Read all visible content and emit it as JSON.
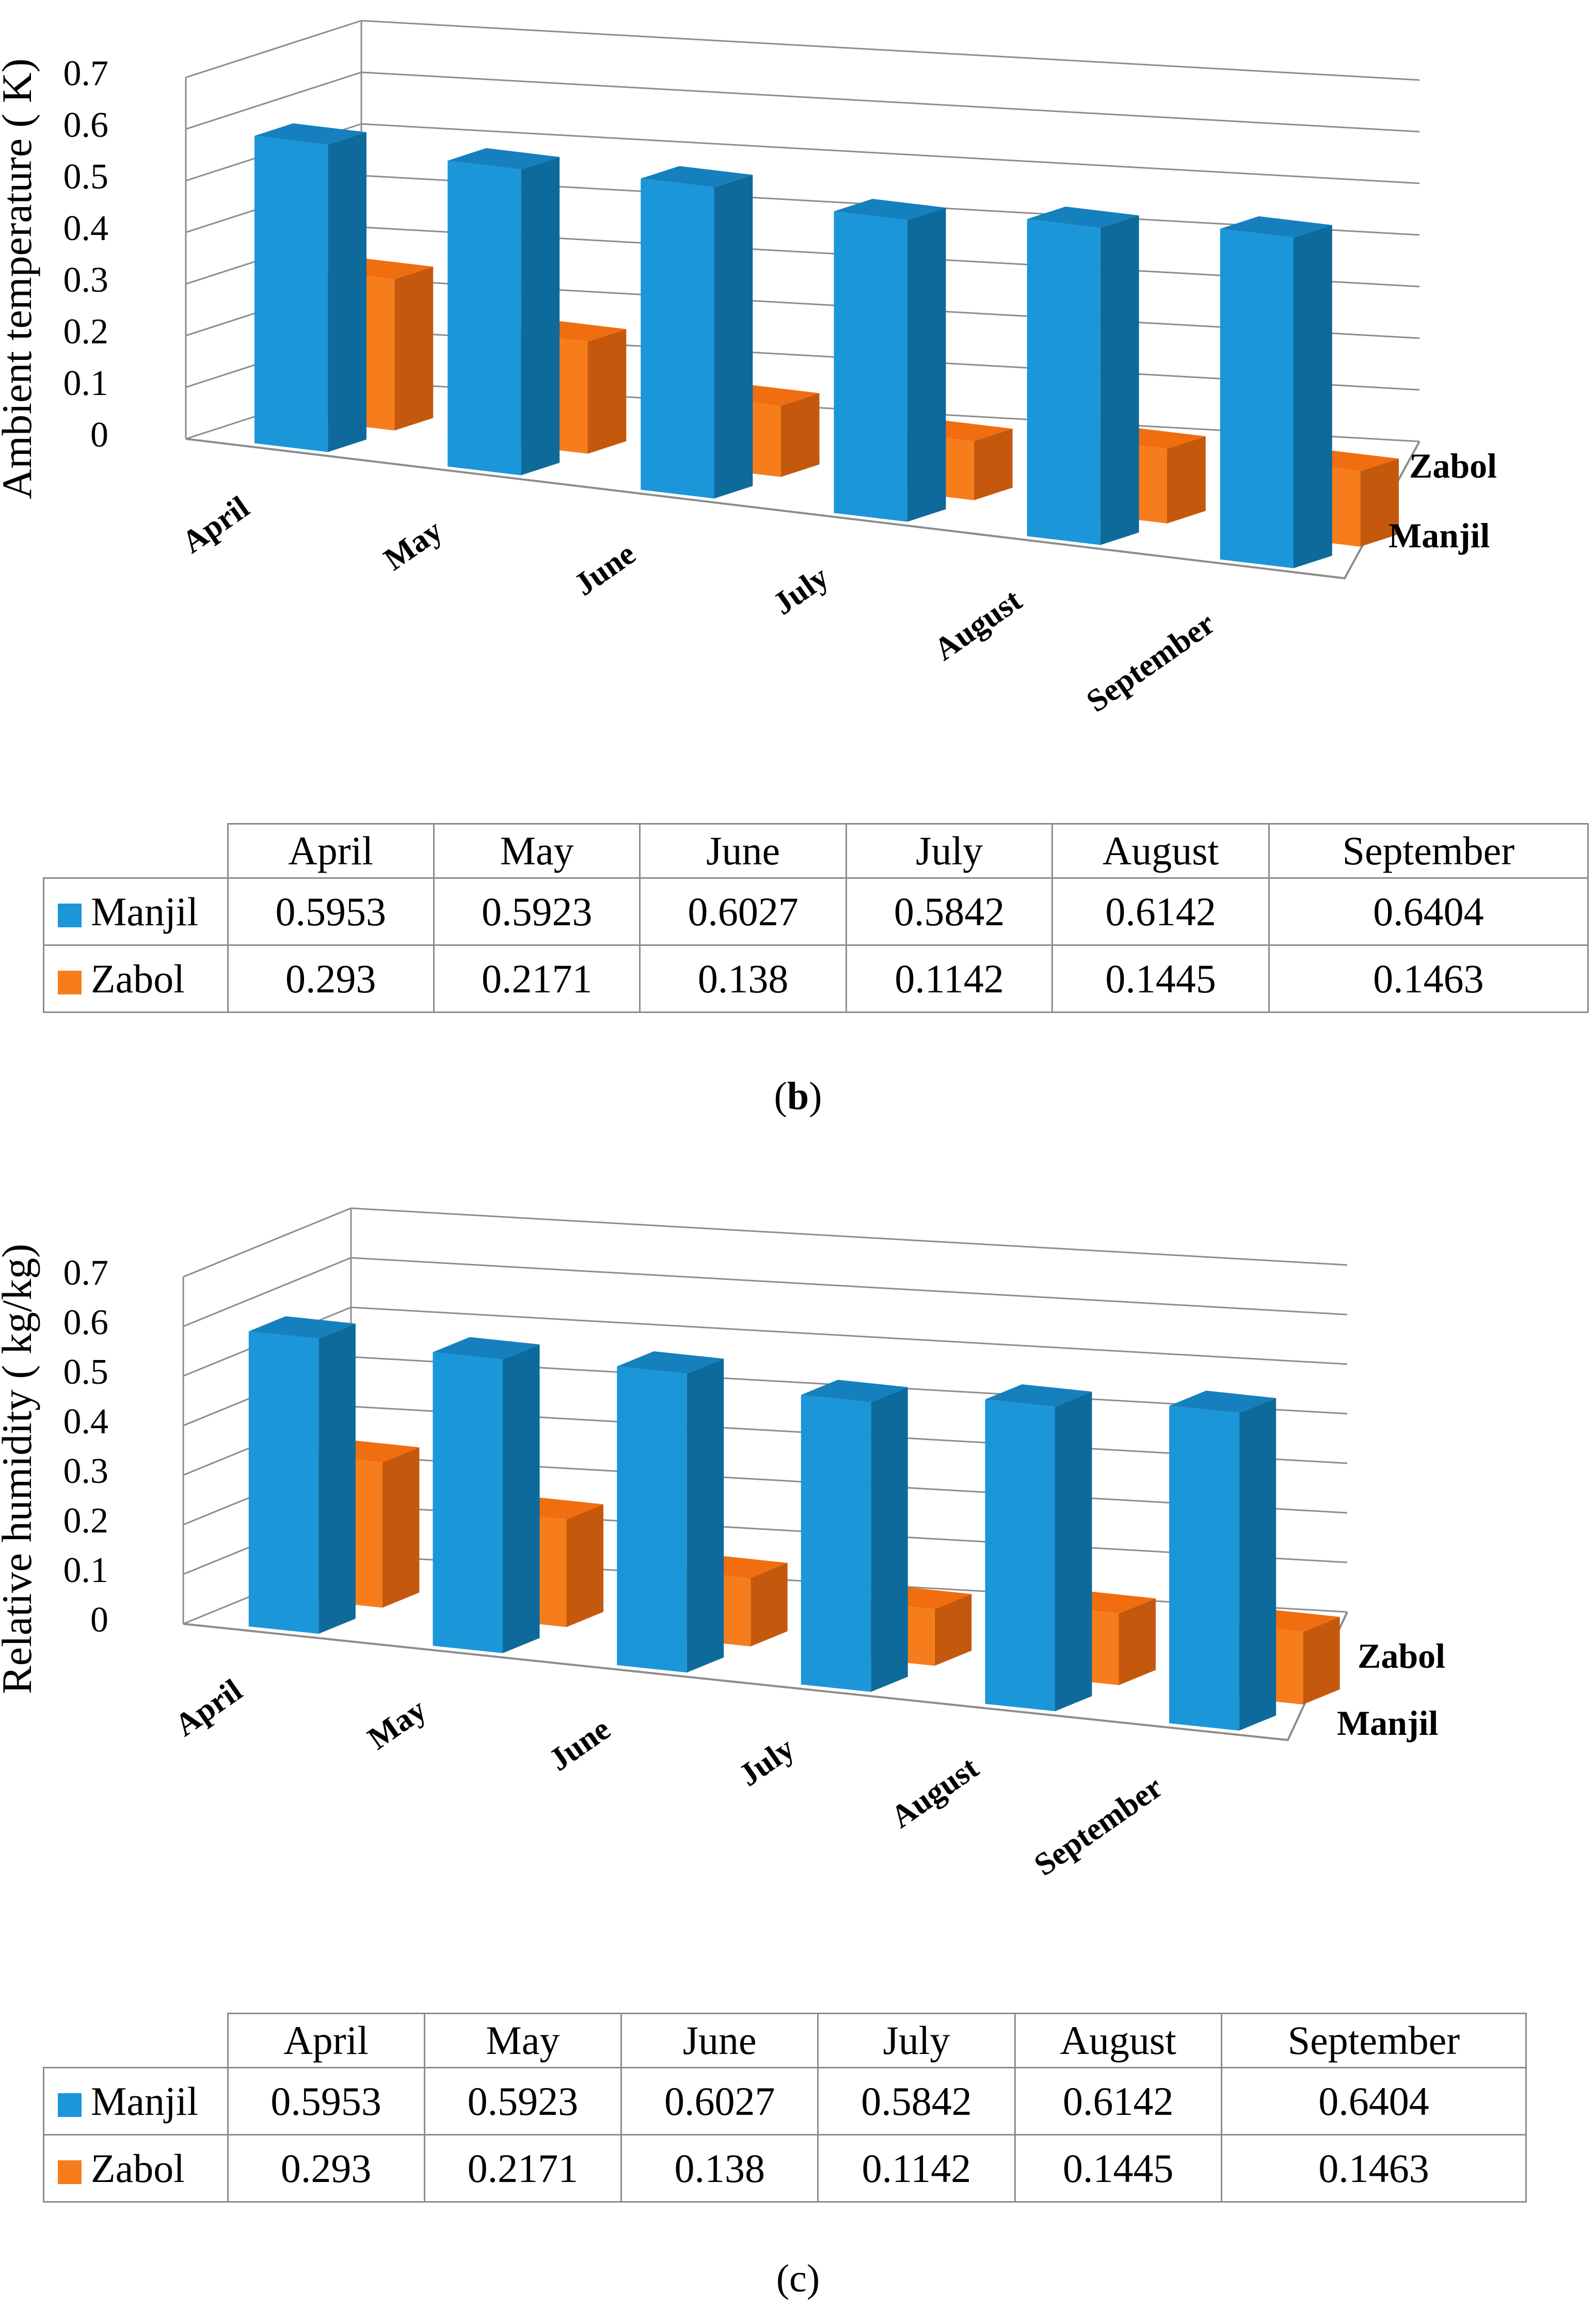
{
  "colors": {
    "manjil_front": "#1b96d9",
    "manjil_side": "#0e6a9a",
    "manjil_top": "#1580bd",
    "zabol_front": "#f77d1c",
    "zabol_side": "#c4590d",
    "zabol_top": "#f06d10",
    "gridline": "#8c8c8c"
  },
  "panels": [
    {
      "id": "b",
      "caption": "b",
      "table": {
        "headers": [
          "April",
          "May",
          "June",
          "July",
          "August",
          "September"
        ],
        "rows": [
          {
            "label": "Manjil",
            "values": [
              "0.5953",
              "0.5923",
              "0.6027",
              "0.5842",
              "0.6142",
              "0.6404"
            ]
          },
          {
            "label": "Zabol",
            "values": [
              "0.293",
              "0.2171",
              "0.138",
              "0.1142",
              "0.1445",
              "0.1463"
            ]
          }
        ]
      }
    },
    {
      "id": "c",
      "caption": "c",
      "table": {
        "headers": [
          "April",
          "May",
          "June",
          "July",
          "August",
          "September"
        ],
        "rows": [
          {
            "label": "Manjil",
            "values": [
              "0.5953",
              "0.5923",
              "0.6027",
              "0.5842",
              "0.6142",
              "0.6404"
            ]
          },
          {
            "label": "Zabol",
            "values": [
              "0.293",
              "0.2171",
              "0.138",
              "0.1142",
              "0.1445",
              "0.1463"
            ]
          }
        ]
      }
    }
  ],
  "chart_data": [
    {
      "type": "bar",
      "title": "",
      "xlabel": "",
      "ylabel": "Ambient temperature ( K)",
      "ylim": [
        0,
        0.7
      ],
      "yticks": [
        "0",
        "0.1",
        "0.2",
        "0.3",
        "0.4",
        "0.5",
        "0.6",
        "0.7"
      ],
      "categories": [
        "April",
        "May",
        "June",
        "July",
        "August",
        "September"
      ],
      "depth_labels": [
        "Zabol",
        "Manjil"
      ],
      "series": [
        {
          "name": "Manjil",
          "values": [
            0.5953,
            0.5923,
            0.6027,
            0.5842,
            0.6142,
            0.6404
          ]
        },
        {
          "name": "Zabol",
          "values": [
            0.293,
            0.2171,
            0.138,
            0.1142,
            0.1445,
            0.1463
          ]
        }
      ]
    },
    {
      "type": "bar",
      "title": "",
      "xlabel": "",
      "ylabel": "Relative humidity ( kg/kg)",
      "ylim": [
        0,
        0.7
      ],
      "yticks": [
        "0",
        "0.1",
        "0.2",
        "0.3",
        "0.4",
        "0.5",
        "0.6",
        "0.7"
      ],
      "categories": [
        "April",
        "May",
        "June",
        "July",
        "August",
        "September"
      ],
      "depth_labels": [
        "Zabol",
        "Manjil"
      ],
      "series": [
        {
          "name": "Manjil",
          "values": [
            0.5953,
            0.5923,
            0.6027,
            0.5842,
            0.6142,
            0.6404
          ]
        },
        {
          "name": "Zabol",
          "values": [
            0.293,
            0.2171,
            0.138,
            0.1142,
            0.1445,
            0.1463
          ]
        }
      ]
    }
  ]
}
